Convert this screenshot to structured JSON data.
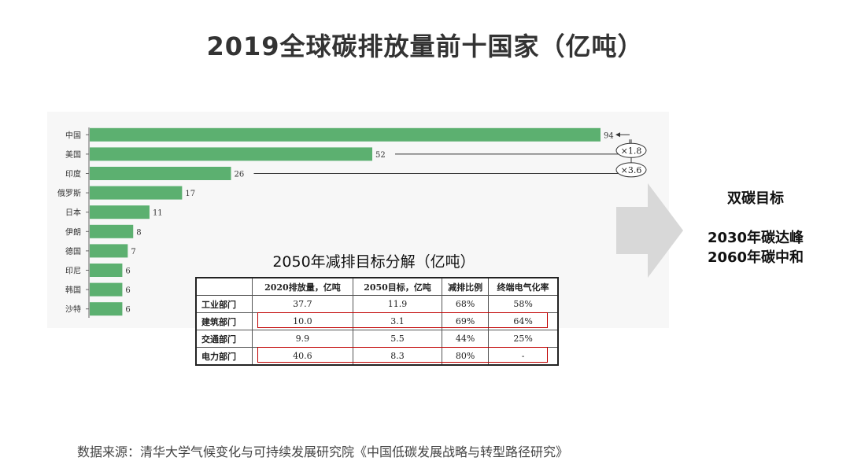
{
  "title": "2019全球碳排放量前十国家（亿吨）",
  "chart_data": {
    "type": "bar",
    "orientation": "horizontal",
    "categories": [
      "中国",
      "美国",
      "印度",
      "俄罗斯",
      "日本",
      "伊朗",
      "德国",
      "印尼",
      "韩国",
      "沙特"
    ],
    "values": [
      94,
      52,
      26,
      17,
      11,
      8,
      7,
      6,
      6,
      6
    ],
    "bar_color": "#5cb070",
    "annotations": [
      "×1.8",
      "×3.6"
    ],
    "xlim": [
      0,
      100
    ]
  },
  "goal": {
    "title": "双碳目标",
    "line1": "2030年碳达峰",
    "line2": "2060年碳中和"
  },
  "table": {
    "title": "2050年减排目标分解（亿吨）",
    "headers": [
      "",
      "2020排放量，亿吨",
      "2050目标，亿吨",
      "减排比例",
      "终端电气化率"
    ],
    "rows": [
      {
        "name": "工业部门",
        "c1": "37.7",
        "c2": "11.9",
        "c3": "68%",
        "c4": "58%"
      },
      {
        "name": "建筑部门",
        "c1": "10.0",
        "c2": "3.1",
        "c3": "69%",
        "c4": "64%"
      },
      {
        "name": "交通部门",
        "c1": "9.9",
        "c2": "5.5",
        "c3": "44%",
        "c4": "25%"
      },
      {
        "name": "电力部门",
        "c1": "40.6",
        "c2": "8.3",
        "c3": "80%",
        "c4": "-"
      }
    ]
  },
  "source": "数据来源：清华大学气候变化与可持续发展研究院《中国低碳发展战略与转型路径研究》",
  "colors": {
    "accent_green": "#5cb070",
    "highlight_red": "#c00000"
  }
}
